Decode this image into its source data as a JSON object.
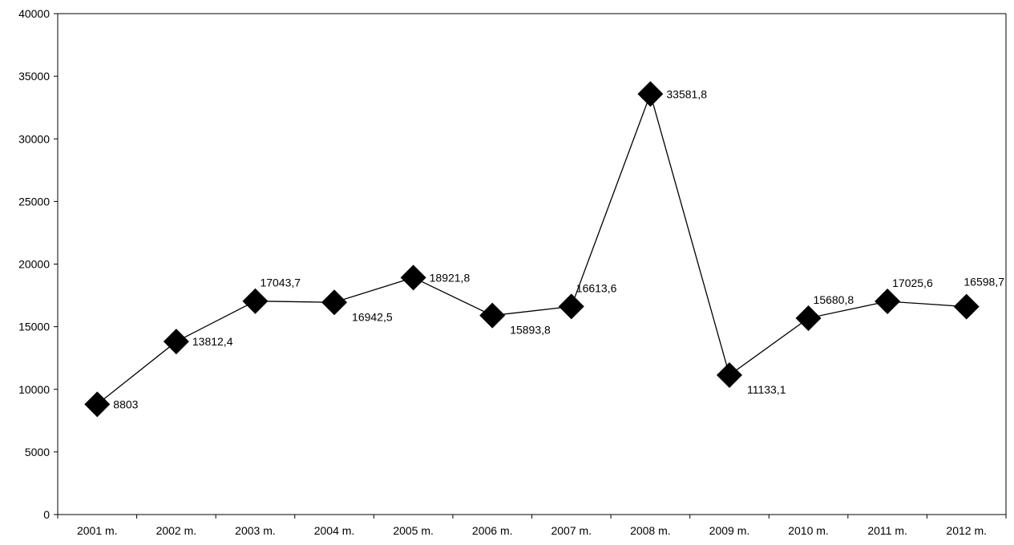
{
  "chart_data": {
    "type": "line",
    "title": "",
    "xlabel": "",
    "ylabel": "",
    "ylim": [
      0,
      40000
    ],
    "yticks": [
      0,
      5000,
      10000,
      15000,
      20000,
      25000,
      30000,
      35000,
      40000
    ],
    "categories": [
      "2001 m.",
      "2002 m.",
      "2003 m.",
      "2004 m.",
      "2005 m.",
      "2006 m.",
      "2007 m.",
      "2008 m.",
      "2009 m.",
      "2010 m.",
      "2011 m.",
      "2012 m."
    ],
    "series": [
      {
        "values": [
          8803,
          13812.4,
          17043.7,
          16942.5,
          18921.8,
          15893.8,
          16613.6,
          33581.8,
          11133.1,
          15680.8,
          17025.6,
          16598.7
        ],
        "labels": [
          "8803",
          "13812,4",
          "17043,7",
          "16942,5",
          "18921,8",
          "15893,8",
          "16613,6",
          "33581,8",
          "11133,1",
          "15680,8",
          "17025,6",
          "16598,7"
        ]
      }
    ],
    "marker": "diamond",
    "grid": false,
    "legend": "none",
    "colors": {
      "line": "#000000",
      "marker": "#000000",
      "axis": "#000000"
    }
  }
}
